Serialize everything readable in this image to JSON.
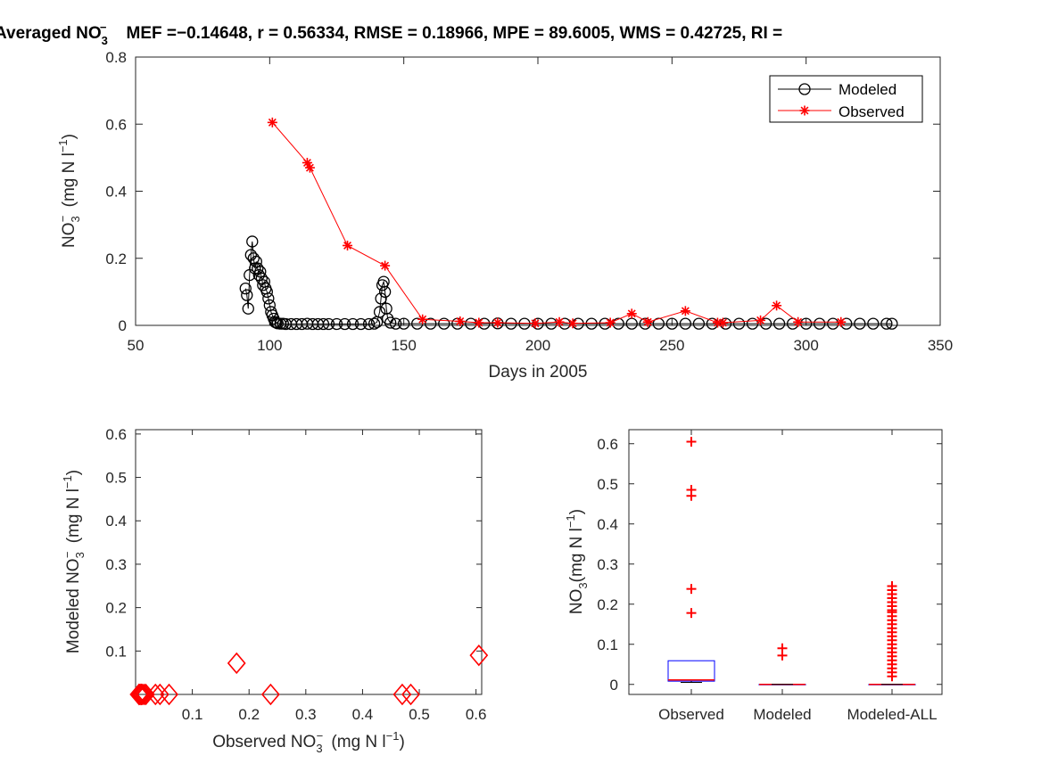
{
  "figure_title": "Averaged NO",
  "figure_title_sub": "3",
  "figure_title_sup": "−",
  "figure_title_stats": "MEF =−0.14648, r = 0.56334, RMSE = 0.18966, MPE = 89.6005, WMS = 0.42725, RI =",
  "colors": {
    "modeled": "#000000",
    "observed": "#ff0000",
    "box": "#0000ff",
    "median": "#ff0000"
  },
  "chart_data": [
    {
      "type": "line",
      "panel": "time-series",
      "xlabel": "Days in 2005",
      "ylabel": "NO3− (mg N l−1)",
      "xlim": [
        50,
        350
      ],
      "ylim": [
        0,
        0.8
      ],
      "xticks": [
        50,
        100,
        150,
        200,
        250,
        300,
        350
      ],
      "yticks": [
        0,
        0.2,
        0.4,
        0.6,
        0.8
      ],
      "legend": {
        "placement": "top-right",
        "entries": [
          "Modeled",
          "Observed"
        ]
      },
      "series": [
        {
          "name": "Modeled",
          "marker": "circle",
          "x": [
            91,
            91.5,
            92,
            92.5,
            93,
            93.5,
            94,
            94.5,
            95,
            95.5,
            96,
            96.5,
            97,
            97.5,
            98,
            98.5,
            99,
            99.5,
            100,
            100.5,
            101,
            101.5,
            102,
            102.5,
            103,
            104,
            105,
            106,
            108,
            110,
            112,
            114,
            116,
            118,
            120,
            122,
            125,
            128,
            131,
            134,
            137,
            139,
            140,
            141,
            141.5,
            142,
            142.5,
            143,
            143.5,
            144,
            145,
            147,
            150,
            155,
            160,
            165,
            170,
            175,
            180,
            185,
            190,
            195,
            200,
            205,
            210,
            215,
            220,
            225,
            230,
            235,
            240,
            245,
            250,
            255,
            260,
            265,
            270,
            275,
            280,
            285,
            290,
            295,
            300,
            305,
            310,
            315,
            320,
            325,
            330,
            332
          ],
          "y": [
            0.11,
            0.09,
            0.05,
            0.15,
            0.21,
            0.25,
            0.2,
            0.17,
            0.19,
            0.17,
            0.15,
            0.16,
            0.14,
            0.12,
            0.13,
            0.11,
            0.1,
            0.08,
            0.06,
            0.04,
            0.03,
            0.02,
            0.01,
            0.008,
            0.006,
            0.005,
            0.005,
            0.004,
            0.004,
            0.004,
            0.004,
            0.005,
            0.004,
            0.004,
            0.004,
            0.004,
            0.004,
            0.004,
            0.004,
            0.004,
            0.004,
            0.005,
            0.01,
            0.04,
            0.08,
            0.12,
            0.13,
            0.1,
            0.05,
            0.02,
            0.008,
            0.005,
            0.005,
            0.005,
            0.005,
            0.005,
            0.005,
            0.005,
            0.005,
            0.006,
            0.005,
            0.005,
            0.005,
            0.005,
            0.005,
            0.005,
            0.005,
            0.005,
            0.005,
            0.005,
            0.005,
            0.005,
            0.005,
            0.005,
            0.005,
            0.005,
            0.005,
            0.005,
            0.005,
            0.005,
            0.005,
            0.005,
            0.005,
            0.005,
            0.005,
            0.005,
            0.005,
            0.005,
            0.005,
            0.005
          ]
        },
        {
          "name": "Observed",
          "marker": "asterisk",
          "x": [
            101,
            114,
            115,
            129,
            143,
            157,
            171,
            178,
            185,
            199,
            208,
            213,
            227,
            235,
            241,
            255,
            267,
            269,
            283,
            289,
            297,
            313
          ],
          "y": [
            0.605,
            0.485,
            0.47,
            0.238,
            0.178,
            0.018,
            0.012,
            0.008,
            0.008,
            0.006,
            0.01,
            0.006,
            0.008,
            0.035,
            0.01,
            0.043,
            0.008,
            0.008,
            0.015,
            0.059,
            0.01,
            0.01
          ]
        }
      ]
    },
    {
      "type": "scatter",
      "panel": "observed-vs-modeled",
      "xlabel": "Observed NO3− (mg N l−1)",
      "ylabel": "Modeled NO3− (mg N l−1)",
      "xlim": [
        0,
        0.61
      ],
      "ylim": [
        0,
        0.61
      ],
      "xticks": [
        0.1,
        0.2,
        0.3,
        0.4,
        0.5,
        0.6
      ],
      "yticks": [
        0.1,
        0.2,
        0.3,
        0.4,
        0.5,
        0.6
      ],
      "marker": "diamond",
      "x": [
        0.605,
        0.485,
        0.47,
        0.238,
        0.178,
        0.059,
        0.043,
        0.035,
        0.018,
        0.015,
        0.012,
        0.01,
        0.01,
        0.008,
        0.008,
        0.006,
        0.006
      ],
      "y": [
        0.09,
        0.0,
        0.0,
        0.0,
        0.072,
        0.0,
        0.0,
        0.0,
        0.0,
        0.0,
        0.0,
        0.0,
        0.0,
        0.0,
        0.0,
        0.0,
        0.0
      ]
    },
    {
      "type": "box",
      "panel": "boxplot",
      "ylabel": "NO3(mg N l−1)",
      "ylim": [
        -0.025,
        0.635
      ],
      "yticks": [
        0,
        0.1,
        0.2,
        0.3,
        0.4,
        0.5,
        0.6
      ],
      "categories": [
        "Observed",
        "Modeled",
        "Modeled-ALL"
      ],
      "boxes": [
        {
          "name": "Observed",
          "q1": 0.008,
          "median": 0.011,
          "q3": 0.059,
          "whisker_low": 0.005,
          "whisker_high": 0.059,
          "outliers": [
            0.605,
            0.485,
            0.47,
            0.238,
            0.178
          ]
        },
        {
          "name": "Modeled",
          "q1": 0.0,
          "median": 0.0,
          "q3": 0.0,
          "whisker_low": 0.0,
          "whisker_high": 0.0,
          "outliers": [
            0.09,
            0.072
          ]
        },
        {
          "name": "Modeled-ALL",
          "q1": 0.0,
          "median": 0.0,
          "q3": 0.0,
          "whisker_low": 0.0,
          "whisker_high": 0.0,
          "outliers": [
            0.245,
            0.235,
            0.225,
            0.215,
            0.205,
            0.195,
            0.185,
            0.18,
            0.17,
            0.16,
            0.15,
            0.14,
            0.13,
            0.12,
            0.11,
            0.1,
            0.09,
            0.08,
            0.07,
            0.06,
            0.05,
            0.04,
            0.03,
            0.02
          ]
        }
      ]
    }
  ]
}
